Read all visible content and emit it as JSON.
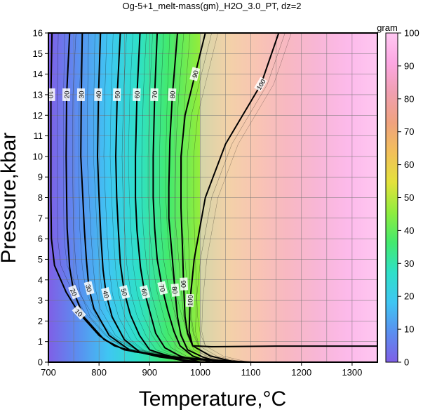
{
  "chart_data": {
    "type": "heatmap",
    "title": "Og-5+1_melt-mass(gm)_H2O_3.0_PT, dz=2",
    "xlabel": "Temperature,°C",
    "ylabel": "Pressure,kbar",
    "xlim": [
      700,
      1350
    ],
    "ylim": [
      0,
      16
    ],
    "x_ticks": [
      "700",
      "800",
      "900",
      "1000",
      "1100",
      "1200",
      "1300"
    ],
    "y_ticks": [
      "0",
      "1",
      "2",
      "3",
      "4",
      "5",
      "6",
      "7",
      "8",
      "9",
      "10",
      "11",
      "12",
      "13",
      "14",
      "15",
      "16"
    ],
    "grid": true,
    "colorbar": {
      "label": "gram",
      "range": [
        0,
        100
      ],
      "ticks": [
        "0",
        "10",
        "20",
        "30",
        "40",
        "50",
        "60",
        "70",
        "80",
        "90",
        "100"
      ],
      "colors": [
        "#7f5fe6",
        "#5a8ff0",
        "#3fc6f2",
        "#2fe0c8",
        "#43ea6e",
        "#8fec3e",
        "#e3e23c",
        "#f2c05a",
        "#f0a27e",
        "#f09fb0",
        "#fca7e2",
        "#ffc8f2"
      ]
    },
    "contour_interval": 2,
    "contour_levels_labeled": [
      10,
      20,
      30,
      40,
      50,
      60,
      70,
      80,
      90,
      100
    ],
    "contours": [
      {
        "level": 10,
        "points": [
          [
            707,
            16
          ],
          [
            705,
            13
          ],
          [
            705,
            8
          ],
          [
            706,
            6
          ],
          [
            712,
            4.7
          ],
          [
            735,
            3.4
          ],
          [
            760,
            2.4
          ],
          [
            800,
            1.3
          ],
          [
            830,
            0.8
          ],
          [
            870,
            0.5
          ],
          [
            950,
            0.25
          ],
          [
            1030,
            0.1
          ],
          [
            1100,
            0
          ]
        ]
      },
      {
        "level": 20,
        "points": [
          [
            742,
            16
          ],
          [
            736,
            13
          ],
          [
            735,
            10
          ],
          [
            736,
            8
          ],
          [
            737,
            6.5
          ],
          [
            742,
            4.6
          ],
          [
            750,
            3.4
          ],
          [
            770,
            2.2
          ],
          [
            810,
            1.1
          ],
          [
            850,
            0.6
          ],
          [
            920,
            0.3
          ],
          [
            1010,
            0.1
          ],
          [
            1060,
            0
          ]
        ]
      },
      {
        "level": 30,
        "points": [
          [
            767,
            16
          ],
          [
            765,
            13
          ],
          [
            764,
            10
          ],
          [
            768,
            8
          ],
          [
            771,
            6.5
          ],
          [
            775,
            5
          ],
          [
            780,
            3.6
          ],
          [
            790,
            2.6
          ],
          [
            820,
            1.3
          ],
          [
            860,
            0.6
          ],
          [
            920,
            0.25
          ],
          [
            1000,
            0
          ]
        ]
      },
      {
        "level": 40,
        "points": [
          [
            803,
            16
          ],
          [
            799,
            13
          ],
          [
            797,
            10
          ],
          [
            800,
            8
          ],
          [
            804,
            6
          ],
          [
            808,
            4.5
          ],
          [
            814,
            3.3
          ],
          [
            826,
            2.2
          ],
          [
            850,
            1.1
          ],
          [
            880,
            0.5
          ],
          [
            940,
            0.2
          ],
          [
            980,
            0
          ]
        ]
      },
      {
        "level": 50,
        "points": [
          [
            842,
            16
          ],
          [
            836,
            13
          ],
          [
            833,
            10
          ],
          [
            835,
            8
          ],
          [
            838,
            6.5
          ],
          [
            842,
            4.8
          ],
          [
            850,
            3.4
          ],
          [
            862,
            2.3
          ],
          [
            880,
            1.3
          ],
          [
            900,
            0.6
          ],
          [
            950,
            0.2
          ],
          [
            985,
            0
          ]
        ]
      },
      {
        "level": 60,
        "points": [
          [
            881,
            16
          ],
          [
            875,
            13
          ],
          [
            872,
            10
          ],
          [
            872,
            8
          ],
          [
            875,
            6.4
          ],
          [
            882,
            4.6
          ],
          [
            890,
            3.4
          ],
          [
            902,
            2.3
          ],
          [
            912,
            1.4
          ],
          [
            930,
            0.7
          ],
          [
            960,
            0.3
          ],
          [
            1000,
            0
          ]
        ]
      },
      {
        "level": 70,
        "points": [
          [
            915,
            16
          ],
          [
            910,
            13
          ],
          [
            907,
            10
          ],
          [
            907,
            8
          ],
          [
            910,
            6.5
          ],
          [
            915,
            5
          ],
          [
            925,
            3.6
          ],
          [
            936,
            2.5
          ],
          [
            948,
            1.5
          ],
          [
            960,
            0.8
          ],
          [
            985,
            0.3
          ],
          [
            1020,
            0
          ]
        ]
      },
      {
        "level": 80,
        "points": [
          [
            955,
            16
          ],
          [
            945,
            13
          ],
          [
            940,
            10.8
          ],
          [
            938,
            8.5
          ],
          [
            938,
            7
          ],
          [
            945,
            5
          ],
          [
            950,
            3.5
          ],
          [
            955,
            2.2
          ],
          [
            962,
            1.3
          ],
          [
            975,
            0.6
          ],
          [
            1005,
            0.25
          ],
          [
            1040,
            0
          ]
        ]
      },
      {
        "level": 90,
        "points": [
          [
            1010,
            16
          ],
          [
            990,
            14
          ],
          [
            970,
            12
          ],
          [
            962,
            10
          ],
          [
            962,
            7.5
          ],
          [
            965,
            5.5
          ],
          [
            967,
            3.8
          ],
          [
            970,
            2.2
          ],
          [
            975,
            1.4
          ],
          [
            985,
            0.8
          ],
          [
            1020,
            0.3
          ],
          [
            1070,
            0
          ]
        ]
      },
      {
        "level": 100,
        "points": [
          [
            1155,
            16
          ],
          [
            1120,
            13.5
          ],
          [
            1050,
            10.6
          ],
          [
            1010,
            8
          ],
          [
            988,
            5
          ],
          [
            980,
            3
          ],
          [
            978,
            1.5
          ],
          [
            985,
            0.8
          ],
          [
            1020,
            0.75
          ],
          [
            1150,
            0.78
          ],
          [
            1350,
            0.78
          ]
        ]
      }
    ]
  }
}
